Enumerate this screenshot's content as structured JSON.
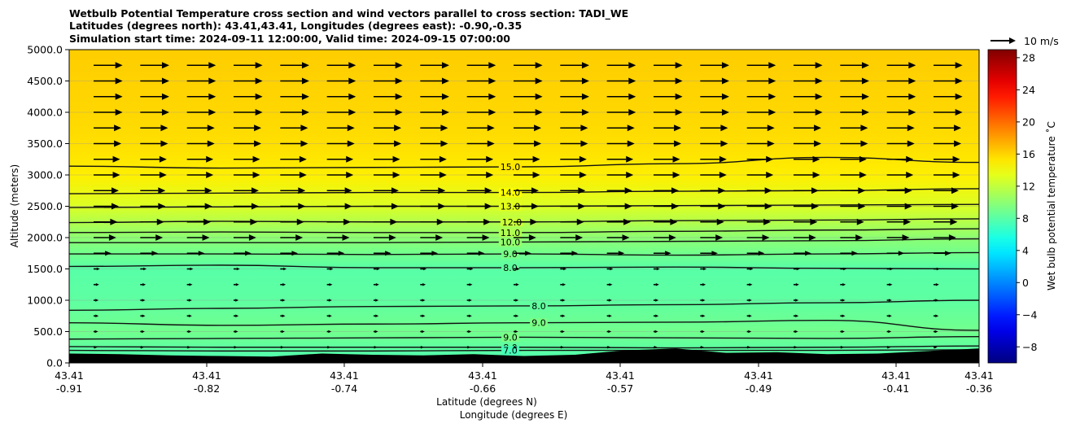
{
  "chart_data": {
    "type": "heatmap",
    "title_lines": [
      "Wetbulb Potential Temperature cross section and wind vectors parallel to cross section: TADI_WE",
      "Latitudes (degrees north): 43.41,43.41, Longitudes (degrees east): -0.90,-0.35",
      "Simulation start time: 2024-09-11 12:00:00, Valid time: 2024-09-15 07:00:00"
    ],
    "xlabel": "Latitude (degrees N)",
    "xlabel2": "Longitude (degrees E)",
    "ylabel": "Altitude (meters)",
    "ylim": [
      0,
      5000
    ],
    "y_ticks": [
      "0.0",
      "500.0",
      "1000.0",
      "1500.0",
      "2000.0",
      "2500.0",
      "3000.0",
      "3500.0",
      "4000.0",
      "4500.0",
      "5000.0"
    ],
    "x_ticks": [
      {
        "lat": "43.41",
        "lon": "-0.91"
      },
      {
        "lat": "43.41",
        "lon": "-0.82"
      },
      {
        "lat": "43.41",
        "lon": "-0.74"
      },
      {
        "lat": "43.41",
        "lon": "-0.66"
      },
      {
        "lat": "43.41",
        "lon": "-0.57"
      },
      {
        "lat": "43.41",
        "lon": "-0.49"
      },
      {
        "lat": "43.41",
        "lon": "-0.41"
      },
      {
        "lat": "43.41",
        "lon": "-0.36"
      }
    ],
    "colorbar": {
      "label": "Wet bulb potential temperature ˚C",
      "min": -10,
      "max": 29,
      "ticks": [
        "−8",
        "−4",
        "0",
        "4",
        "8",
        "12",
        "16",
        "20",
        "24",
        "28"
      ],
      "tick_values": [
        -8,
        -4,
        0,
        4,
        8,
        12,
        16,
        20,
        24,
        28
      ],
      "colormap": "jet"
    },
    "quiver_key": {
      "label": "10 m/s",
      "speed": 10
    },
    "temperature_profile": [
      {
        "z": 0,
        "t": 7.5
      },
      {
        "z": 500,
        "t": 9.0
      },
      {
        "z": 1000,
        "t": 8.2
      },
      {
        "z": 1500,
        "t": 8.0
      },
      {
        "z": 2000,
        "t": 10.0
      },
      {
        "z": 2500,
        "t": 13.0
      },
      {
        "z": 3000,
        "t": 15.0
      },
      {
        "z": 3500,
        "t": 15.6
      },
      {
        "z": 4000,
        "t": 15.9
      },
      {
        "z": 5000,
        "t": 16.3
      }
    ],
    "contour_lines": [
      {
        "label": "15.0",
        "level": 15.0,
        "y": [
          3140,
          3110,
          3120,
          3130,
          3180,
          3280,
          3200
        ]
      },
      {
        "label": "14.0",
        "level": 14.0,
        "y": [
          2700,
          2710,
          2720,
          2720,
          2740,
          2750,
          2780
        ]
      },
      {
        "label": "13.0",
        "level": 13.0,
        "y": [
          2480,
          2490,
          2500,
          2500,
          2510,
          2520,
          2530
        ]
      },
      {
        "label": "12.0",
        "level": 12.0,
        "y": [
          2240,
          2260,
          2250,
          2250,
          2270,
          2280,
          2300
        ]
      },
      {
        "label": "11.0",
        "level": 11.0,
        "y": [
          2080,
          2090,
          2080,
          2080,
          2100,
          2120,
          2140
        ]
      },
      {
        "label": "10.0",
        "level": 10.0,
        "y": [
          1920,
          1920,
          1920,
          1930,
          1940,
          1950,
          1980
        ]
      },
      {
        "label": "9.0",
        "level": 9.0,
        "y": [
          1740,
          1740,
          1730,
          1740,
          1720,
          1740,
          1760
        ]
      },
      {
        "label": "8.0",
        "level": 8.0,
        "y": [
          1540,
          1560,
          1520,
          1520,
          1530,
          1510,
          1500
        ]
      },
      {
        "label": "8.0",
        "level": 8.0,
        "y": [
          840,
          870,
          900,
          910,
          930,
          960,
          1000
        ]
      },
      {
        "label": "9.0",
        "level": 9.0,
        "y": [
          640,
          600,
          620,
          640,
          650,
          680,
          520
        ]
      },
      {
        "label": "9.0",
        "level": 9.0,
        "y": [
          380,
          390,
          400,
          410,
          400,
          390,
          420
        ]
      },
      {
        "label": "8.0",
        "level": 8.0,
        "y": [
          260,
          250,
          250,
          250,
          240,
          250,
          270
        ]
      },
      {
        "label": "7.0",
        "level": 7.0,
        "y": [
          200,
          190,
          190,
          200,
          200,
          200,
          210
        ]
      }
    ],
    "wind_levels_m": [
      250,
      500,
      750,
      1000,
      1250,
      1500,
      1750,
      2000,
      2250,
      2500,
      2750,
      3000,
      3250,
      3500,
      3750,
      4000,
      4250,
      4500,
      4750
    ],
    "wind_speed_ms": [
      1.5,
      1.8,
      2.0,
      2.0,
      2.2,
      2.5,
      7.0,
      9.0,
      9.5,
      10.0,
      10.0,
      10.5,
      10.5,
      11.0,
      11.0,
      11.5,
      11.5,
      11.5,
      11.5
    ],
    "terrain_m": [
      150,
      140,
      120,
      110,
      100,
      150,
      130,
      120,
      140,
      110,
      130,
      200,
      230,
      160,
      170,
      140,
      150,
      190,
      230
    ]
  }
}
